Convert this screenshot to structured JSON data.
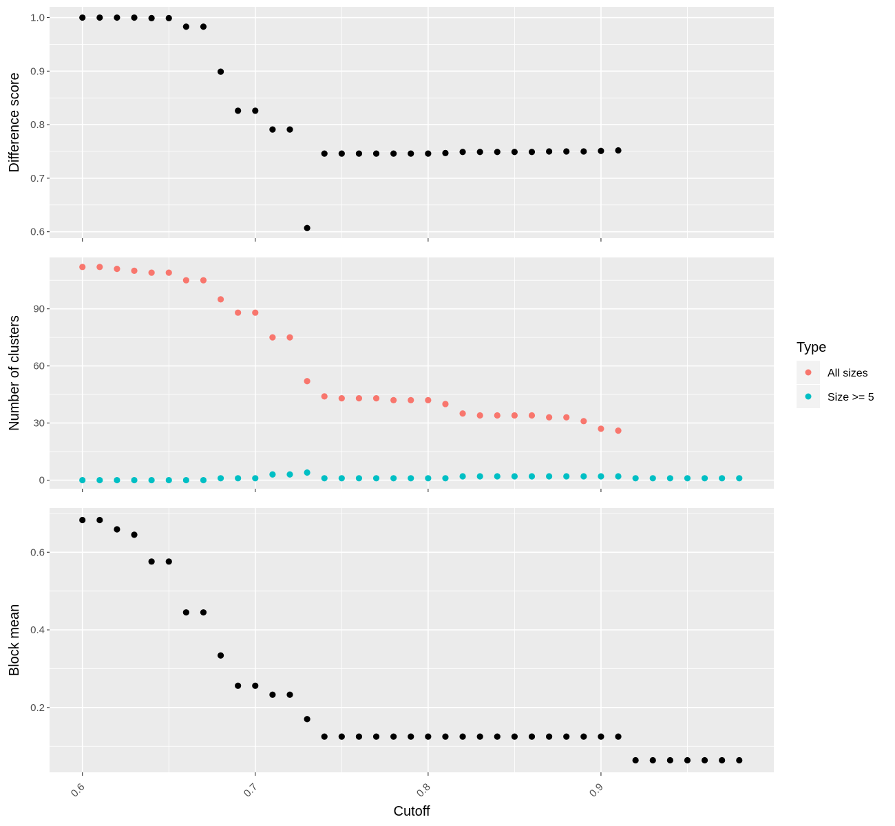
{
  "chart_data": [
    {
      "type": "scatter",
      "id": "difference",
      "ylabel": "Difference score",
      "ylim": [
        0.588,
        1.02
      ],
      "yticks": [
        0.6,
        0.7,
        0.8,
        0.9,
        1.0
      ],
      "ytick_labels": [
        "0.6",
        "0.7",
        "0.8",
        "0.9",
        "1.0"
      ],
      "series": [
        {
          "color": "#000000",
          "x": [
            0.6,
            0.61,
            0.62,
            0.63,
            0.64,
            0.65,
            0.66,
            0.67,
            0.68,
            0.69,
            0.7,
            0.71,
            0.72,
            0.73,
            0.74,
            0.75,
            0.76,
            0.77,
            0.78,
            0.79,
            0.8,
            0.81,
            0.82,
            0.83,
            0.84,
            0.85,
            0.86,
            0.87,
            0.88,
            0.89,
            0.9,
            0.91
          ],
          "y": [
            1.0,
            1.0,
            1.0,
            1.0,
            0.999,
            0.999,
            0.983,
            0.983,
            0.899,
            0.826,
            0.826,
            0.791,
            0.791,
            0.607,
            0.746,
            0.746,
            0.746,
            0.746,
            0.746,
            0.746,
            0.746,
            0.747,
            0.749,
            0.749,
            0.749,
            0.749,
            0.749,
            0.75,
            0.75,
            0.75,
            0.751,
            0.752
          ]
        }
      ]
    },
    {
      "type": "scatter",
      "id": "clusters",
      "ylabel": "Number of clusters",
      "ylim": [
        -4.5,
        117
      ],
      "yticks": [
        0,
        30,
        60,
        90
      ],
      "ytick_labels": [
        "0",
        "30",
        "60",
        "90"
      ],
      "legend": {
        "title": "Type",
        "position": "right"
      },
      "series": [
        {
          "name": "All sizes",
          "color": "#F8766D",
          "x": [
            0.6,
            0.61,
            0.62,
            0.63,
            0.64,
            0.65,
            0.66,
            0.67,
            0.68,
            0.69,
            0.7,
            0.71,
            0.72,
            0.73,
            0.74,
            0.75,
            0.76,
            0.77,
            0.78,
            0.79,
            0.8,
            0.81,
            0.82,
            0.83,
            0.84,
            0.85,
            0.86,
            0.87,
            0.88,
            0.89,
            0.9,
            0.91
          ],
          "y": [
            112,
            112,
            111,
            110,
            109,
            109,
            105,
            105,
            95,
            88,
            88,
            75,
            75,
            52,
            44,
            43,
            43,
            43,
            42,
            42,
            42,
            40,
            35,
            34,
            34,
            34,
            34,
            33,
            33,
            31,
            27,
            26
          ]
        },
        {
          "name": "Size >= 5",
          "color": "#00BFC4",
          "x": [
            0.6,
            0.61,
            0.62,
            0.63,
            0.64,
            0.65,
            0.66,
            0.67,
            0.68,
            0.69,
            0.7,
            0.71,
            0.72,
            0.73,
            0.74,
            0.75,
            0.76,
            0.77,
            0.78,
            0.79,
            0.8,
            0.81,
            0.82,
            0.83,
            0.84,
            0.85,
            0.86,
            0.87,
            0.88,
            0.89,
            0.9,
            0.91,
            0.92,
            0.93,
            0.94,
            0.95,
            0.96,
            0.97,
            0.98
          ],
          "y": [
            0,
            0,
            0,
            0,
            0,
            0,
            0,
            0,
            1,
            1,
            1,
            3,
            3,
            4,
            1,
            1,
            1,
            1,
            1,
            1,
            1,
            1,
            2,
            2,
            2,
            2,
            2,
            2,
            2,
            2,
            2,
            2,
            1,
            1,
            1,
            1,
            1,
            1,
            1
          ]
        }
      ]
    },
    {
      "type": "scatter",
      "id": "blockmean",
      "ylabel": "Block mean",
      "xlabel": "Cutoff",
      "ylim": [
        0.033,
        0.714
      ],
      "yticks": [
        0.2,
        0.4,
        0.6
      ],
      "ytick_labels": [
        "0.2",
        "0.4",
        "0.6"
      ],
      "series": [
        {
          "color": "#000000",
          "x": [
            0.6,
            0.61,
            0.62,
            0.63,
            0.64,
            0.65,
            0.66,
            0.67,
            0.68,
            0.69,
            0.7,
            0.71,
            0.72,
            0.73,
            0.74,
            0.75,
            0.76,
            0.77,
            0.78,
            0.79,
            0.8,
            0.81,
            0.82,
            0.83,
            0.84,
            0.85,
            0.86,
            0.87,
            0.88,
            0.89,
            0.9,
            0.91,
            0.92,
            0.93,
            0.94,
            0.95,
            0.96,
            0.97,
            0.98
          ],
          "y": [
            0.683,
            0.683,
            0.659,
            0.645,
            0.576,
            0.576,
            0.445,
            0.445,
            0.334,
            0.256,
            0.256,
            0.233,
            0.233,
            0.17,
            0.125,
            0.125,
            0.125,
            0.125,
            0.125,
            0.125,
            0.125,
            0.125,
            0.125,
            0.125,
            0.125,
            0.125,
            0.125,
            0.125,
            0.125,
            0.125,
            0.125,
            0.125,
            0.064,
            0.064,
            0.064,
            0.064,
            0.064,
            0.064,
            0.064
          ]
        }
      ]
    }
  ],
  "x_axis": {
    "title": "Cutoff",
    "xlim": [
      0.581,
      1.0
    ],
    "ticks": [
      0.6,
      0.7,
      0.8,
      0.9
    ],
    "tick_labels": [
      "0.6",
      "0.7",
      "0.8",
      "0.9"
    ]
  },
  "grid": true,
  "theme_colors": {
    "panel": "#EBEBEB",
    "grid": "#FFFFFF",
    "tick_label": "#4D4D4D"
  }
}
